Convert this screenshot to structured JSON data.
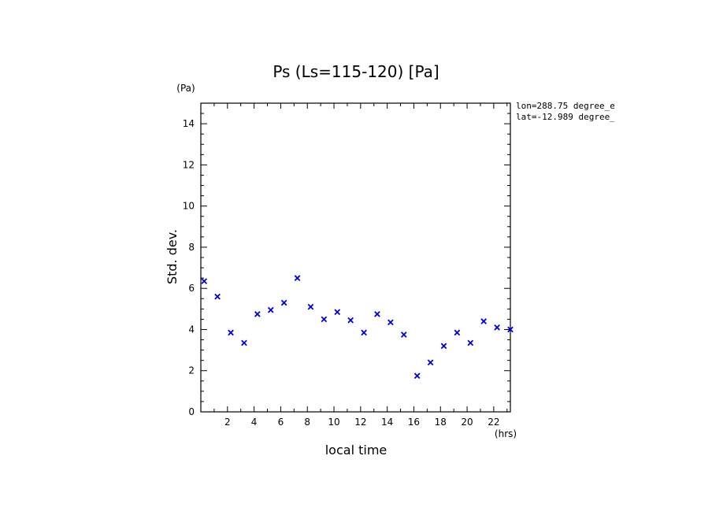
{
  "chart_data": {
    "type": "scatter",
    "title": "Ps (Ls=115-120) [Pa]",
    "xlabel": "local time",
    "ylabel": "Std. dev.",
    "x_unit": "(hrs)",
    "y_unit": "(Pa)",
    "xlim": [
      0,
      23.25
    ],
    "ylim": [
      0,
      15
    ],
    "x_ticks": [
      "2",
      "4",
      "6",
      "8",
      "10",
      "12",
      "14",
      "16",
      "18",
      "20",
      "22"
    ],
    "y_ticks": [
      "0",
      "2",
      "4",
      "6",
      "8",
      "10",
      "12",
      "14"
    ],
    "grid": false,
    "marker": "x",
    "color": "#0000dd",
    "annotations": [
      "lon=288.75 degree_e",
      "lat=-12.989 degree_"
    ],
    "series": [
      {
        "x": [
          0.25,
          1.25,
          2.25,
          3.25,
          4.25,
          5.25,
          6.25,
          7.25,
          8.25,
          9.25,
          10.25,
          11.25,
          12.25,
          13.25,
          14.25,
          15.25,
          16.25,
          17.25,
          18.25,
          19.25,
          20.25,
          21.25,
          22.25,
          23.25
        ],
        "y": [
          6.35,
          5.6,
          3.85,
          3.35,
          4.75,
          4.95,
          5.3,
          6.5,
          5.1,
          4.5,
          4.85,
          4.45,
          3.85,
          4.75,
          4.35,
          3.75,
          1.75,
          2.4,
          3.2,
          3.85,
          3.35,
          4.4,
          4.1,
          4.0
        ]
      }
    ]
  }
}
